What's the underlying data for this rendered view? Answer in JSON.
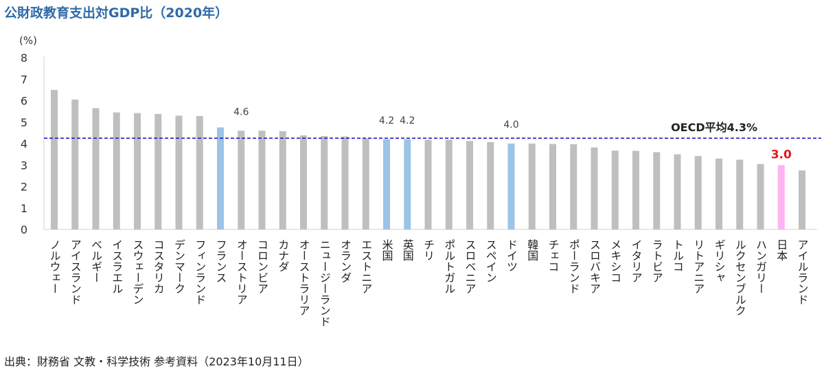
{
  "title": "公財政教育支出対GDP比（2020年）",
  "source": "出典：財務省 文教・科学技術 参考資料（2023年10月11日）",
  "chart_data": {
    "type": "bar",
    "title": "公財政教育支出対GDP比（2020年）",
    "ylabel": "(%)",
    "ylim": [
      0,
      8
    ],
    "yticks": [
      "0",
      "1",
      "2",
      "3",
      "4",
      "5",
      "6",
      "7",
      "8"
    ],
    "categories": [
      "ノルウェー",
      "アイスランド",
      "ベルギー",
      "イスラエル",
      "スウェーデン",
      "コスタリカ",
      "デンマーク",
      "フィンランド",
      "フランス",
      "オーストリア",
      "コロンビア",
      "カナダ",
      "オーストラリア",
      "ニュージーランド",
      "オランダ",
      "エストニア",
      "米国",
      "英国",
      "チリ",
      "ポルトガル",
      "スロベニア",
      "スペイン",
      "ドイツ",
      "韓国",
      "チェコ",
      "ポーランド",
      "スロバキア",
      "メキシコ",
      "イタリア",
      "ラトビア",
      "トルコ",
      "リトアニア",
      "ギリシャ",
      "ルクセンブルク",
      "ハンガリー",
      "日本",
      "アイルランド"
    ],
    "values": [
      6.5,
      6.05,
      5.65,
      5.45,
      5.42,
      5.38,
      5.3,
      5.28,
      4.75,
      4.6,
      4.6,
      4.58,
      4.38,
      4.35,
      4.33,
      4.25,
      4.2,
      4.2,
      4.18,
      4.18,
      4.12,
      4.07,
      4.0,
      4.0,
      3.98,
      3.97,
      3.82,
      3.67,
      3.66,
      3.6,
      3.5,
      3.42,
      3.3,
      3.25,
      3.05,
      3.0,
      2.75
    ],
    "highlight": {
      "フランス": "#9dc3e6",
      "米国": "#9dc3e6",
      "英国": "#9dc3e6",
      "ドイツ": "#9dc3e6",
      "日本": "#ffb3f0"
    },
    "bar_color": "#bfbfbf",
    "data_labels": [
      {
        "category": "オーストリア",
        "text": "4.6",
        "color": "#404040"
      },
      {
        "category": "米国",
        "text": "4.2",
        "color": "#404040"
      },
      {
        "category": "英国",
        "text": "4.2",
        "color": "#404040"
      },
      {
        "category": "ドイツ",
        "text": "4.0",
        "color": "#404040"
      },
      {
        "category": "日本",
        "text": "3.0",
        "color": "#e8151b"
      }
    ],
    "reference_line": {
      "value": 4.25,
      "label": "OECD平均4.3%",
      "color": "#1f1fc4"
    },
    "grid": false,
    "legend": "none"
  }
}
